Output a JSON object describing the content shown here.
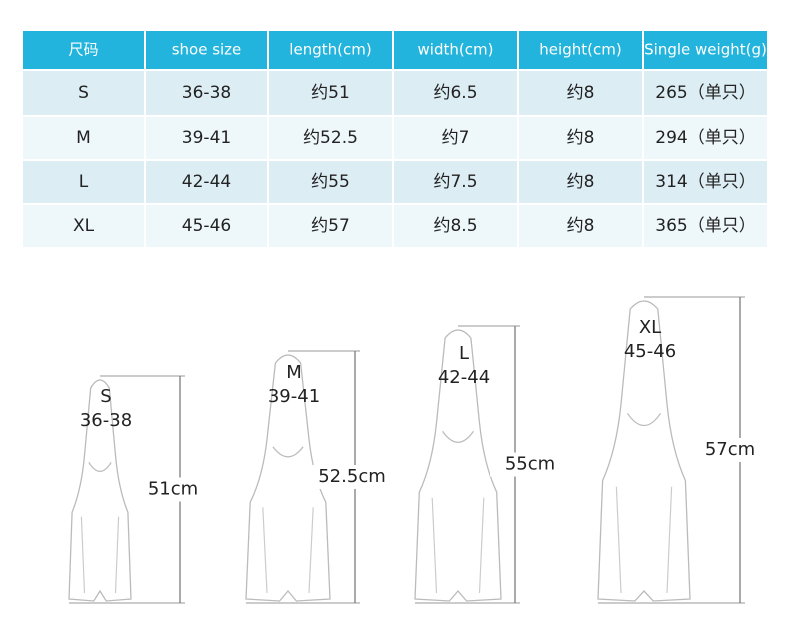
{
  "table": {
    "header": [
      "尺码",
      "shoe size",
      "length(cm)",
      "width(cm)",
      "height(cm)",
      "Single weight(g)"
    ],
    "rows": [
      [
        "S",
        "36-38",
        "约51",
        "约6.5",
        "约8",
        "265（单只）"
      ],
      [
        "M",
        "39-41",
        "约52.5",
        "约7",
        "约8",
        "294（单只）"
      ],
      [
        "L",
        "42-44",
        "约55",
        "约7.5",
        "约8",
        "314（单只）"
      ],
      [
        "XL",
        "45-46",
        "约57",
        "约8.5",
        "约8",
        "365（单只）"
      ]
    ]
  },
  "fins": [
    {
      "size": "S",
      "shoe_size": "36-38",
      "length": "51cm"
    },
    {
      "size": "M",
      "shoe_size": "39-41",
      "length": "52.5cm"
    },
    {
      "size": "L",
      "shoe_size": "42-44",
      "length": "55cm"
    },
    {
      "size": "XL",
      "shoe_size": "45-46",
      "length": "57cm"
    }
  ]
}
